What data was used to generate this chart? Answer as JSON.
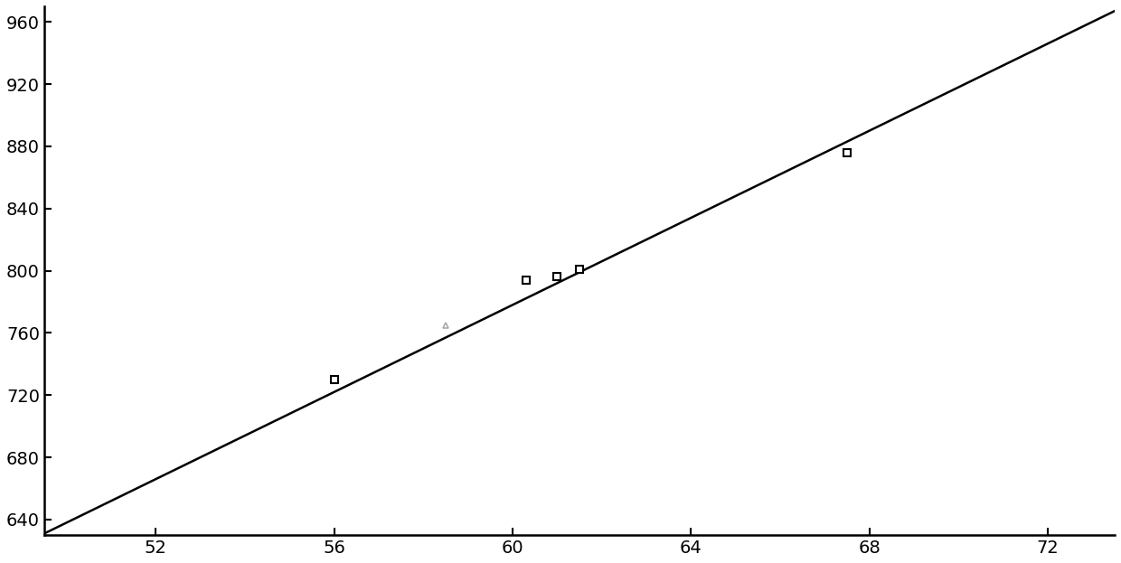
{
  "title": "",
  "xlabel": "",
  "ylabel": "",
  "xlim": [
    49.5,
    73.5
  ],
  "ylim": [
    630,
    970
  ],
  "xticks": [
    52,
    56,
    60,
    64,
    68,
    72
  ],
  "yticks": [
    640,
    680,
    720,
    760,
    800,
    840,
    880,
    920,
    960
  ],
  "line_slope": 14.0,
  "line_intercept": -62.0,
  "line_color": "#000000",
  "line_width": 1.8,
  "square_points": [
    [
      56.0,
      730
    ],
    [
      60.3,
      794
    ],
    [
      61.0,
      796
    ],
    [
      61.5,
      801
    ],
    [
      67.5,
      876
    ]
  ],
  "triangle_point": [
    58.5,
    765
  ],
  "square_color": "#000000",
  "triangle_color": "#aaaaaa",
  "marker_size": 6,
  "background_color": "#ffffff",
  "tick_fontsize": 14,
  "spine_linewidth": 1.8
}
